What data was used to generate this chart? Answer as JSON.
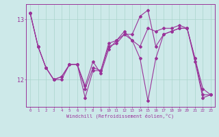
{
  "xlabel": "Windchill (Refroidissement éolien,°C)",
  "background_color": "#cde9e9",
  "grid_color": "#aad4cc",
  "line_color": "#993399",
  "x_values": [
    0,
    1,
    2,
    3,
    4,
    5,
    6,
    7,
    8,
    9,
    10,
    11,
    12,
    13,
    14,
    15,
    16,
    17,
    18,
    19,
    20,
    21,
    22,
    23
  ],
  "series1": [
    13.1,
    12.55,
    12.2,
    12.0,
    12.05,
    12.25,
    12.25,
    11.85,
    12.2,
    12.15,
    12.55,
    12.6,
    12.75,
    12.65,
    12.55,
    12.85,
    12.8,
    12.85,
    12.85,
    12.9,
    12.85,
    12.35,
    11.85,
    11.75
  ],
  "series2": [
    13.1,
    12.55,
    12.2,
    12.0,
    12.0,
    12.25,
    12.25,
    11.9,
    12.3,
    12.1,
    12.5,
    12.65,
    12.8,
    12.65,
    12.35,
    11.65,
    12.35,
    12.75,
    12.8,
    12.85,
    12.85,
    12.3,
    11.7,
    11.75
  ],
  "series3": [
    13.1,
    12.55,
    12.2,
    12.0,
    12.05,
    12.25,
    12.25,
    11.7,
    12.15,
    12.15,
    12.6,
    12.65,
    12.75,
    12.75,
    13.05,
    13.15,
    12.55,
    12.75,
    12.8,
    12.85,
    12.85,
    12.35,
    11.75,
    11.75
  ],
  "ylim": [
    11.55,
    13.25
  ],
  "yticks": [
    12,
    13
  ],
  "xlim": [
    -0.5,
    23.5
  ],
  "figsize": [
    3.2,
    2.0
  ],
  "dpi": 100
}
